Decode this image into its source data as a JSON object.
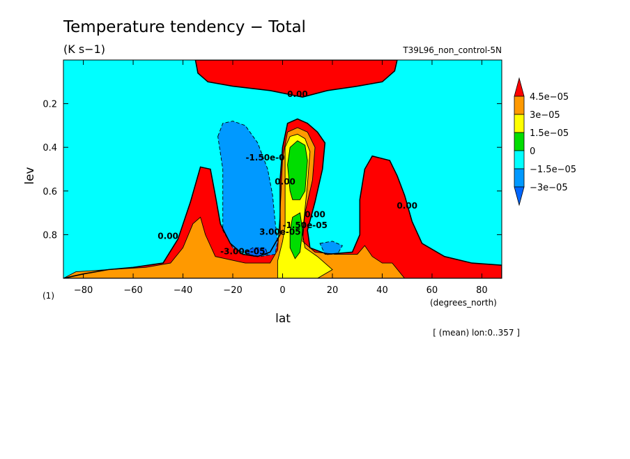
{
  "chart_data": {
    "type": "heatmap",
    "title": "Temperature tendency − Total",
    "units": "(K s−1)",
    "run_label": "T39L96_non_control-5N",
    "xlabel": "lat",
    "ylabel": "lev",
    "x_units": "(degrees_north)",
    "y_units": "(1)",
    "note": "[ (mean) lon:0..357 ]",
    "xlim": [
      -88,
      88
    ],
    "ylim": [
      0.0,
      1.0
    ],
    "y_inverted": true,
    "x_ticks": [
      {
        "value": -80,
        "label": "−80"
      },
      {
        "value": -60,
        "label": "−60"
      },
      {
        "value": -40,
        "label": "−40"
      },
      {
        "value": -20,
        "label": "−20"
      },
      {
        "value": 0,
        "label": "0"
      },
      {
        "value": 20,
        "label": "20"
      },
      {
        "value": 40,
        "label": "40"
      },
      {
        "value": 60,
        "label": "60"
      },
      {
        "value": 80,
        "label": "80"
      }
    ],
    "y_ticks": [
      {
        "value": 0.2,
        "label": "0.2"
      },
      {
        "value": 0.4,
        "label": "0.4"
      },
      {
        "value": 0.6,
        "label": "0.6"
      },
      {
        "value": 0.8,
        "label": "0.8"
      }
    ],
    "colorbar": {
      "labels": [
        "4.5e−05",
        "3e−05",
        "1.5e−05",
        "0",
        "−1.5e−05",
        "−3e−05"
      ],
      "levels": [
        4.5e-05,
        3e-05,
        1.5e-05,
        0,
        -1.5e-05,
        -3e-05
      ],
      "colors": [
        "#ff0000",
        "#ff9900",
        "#ffff00",
        "#00dd00",
        "#00ffff",
        "#0099ff",
        "#0066ff"
      ]
    },
    "contour_labels": [
      {
        "text": "0.00",
        "lat": 6,
        "lev": 0.17
      },
      {
        "text": "0.00",
        "lat": -46,
        "lev": 0.82
      },
      {
        "text": "0.00",
        "lat": 50,
        "lev": 0.68
      },
      {
        "text": "-1.50e-0",
        "lat": -7,
        "lev": 0.46
      },
      {
        "text": "-3.00e-05",
        "lat": -16,
        "lev": 0.89
      },
      {
        "text": "0.00",
        "lat": 13,
        "lev": 0.72
      },
      {
        "text": "-1.50e-05",
        "lat": 9,
        "lev": 0.77
      },
      {
        "text": "3.00e-05",
        "lat": -1,
        "lev": 0.8
      },
      {
        "text": "0.00",
        "lat": 1,
        "lev": 0.57
      }
    ],
    "fields": [
      {
        "level": 0,
        "polygons": [
          [
            [
              -88,
              1.0
            ],
            [
              -80,
              0.98
            ],
            [
              -70,
              0.96
            ],
            [
              -60,
              0.95
            ],
            [
              -48,
              0.93
            ],
            [
              -42,
              0.82
            ],
            [
              -37,
              0.65
            ],
            [
              -33,
              0.49
            ],
            [
              -29,
              0.5
            ],
            [
              -27,
              0.62
            ],
            [
              -25,
              0.75
            ],
            [
              -21,
              0.84
            ],
            [
              -16,
              0.89
            ],
            [
              -10,
              0.9
            ],
            [
              -5,
              0.88
            ],
            [
              -1,
              0.8
            ],
            [
              -1,
              0.55
            ],
            [
              0,
              0.4
            ],
            [
              2,
              0.29
            ],
            [
              6,
              0.27
            ],
            [
              10,
              0.29
            ],
            [
              14,
              0.33
            ],
            [
              17,
              0.38
            ],
            [
              16,
              0.5
            ],
            [
              13,
              0.65
            ],
            [
              10,
              0.78
            ],
            [
              11,
              0.86
            ],
            [
              18,
              0.89
            ],
            [
              28,
              0.88
            ],
            [
              31,
              0.8
            ],
            [
              31,
              0.64
            ],
            [
              33,
              0.5
            ],
            [
              36,
              0.44
            ],
            [
              43,
              0.46
            ],
            [
              46,
              0.53
            ],
            [
              49,
              0.62
            ],
            [
              52,
              0.74
            ],
            [
              56,
              0.84
            ],
            [
              65,
              0.9
            ],
            [
              76,
              0.93
            ],
            [
              88,
              0.94
            ],
            [
              88,
              1.0
            ]
          ],
          [
            [
              -35,
              0.0
            ],
            [
              -34,
              0.06
            ],
            [
              -30,
              0.1
            ],
            [
              -20,
              0.12
            ],
            [
              -5,
              0.14
            ],
            [
              8,
              0.17
            ],
            [
              18,
              0.14
            ],
            [
              30,
              0.12
            ],
            [
              40,
              0.1
            ],
            [
              45,
              0.05
            ],
            [
              46,
              0.0
            ]
          ]
        ]
      },
      {
        "level": 1,
        "polygons": [
          [
            [
              -88,
              1.0
            ],
            [
              -83,
              0.97
            ],
            [
              -70,
              0.96
            ],
            [
              -55,
              0.95
            ],
            [
              -45,
              0.93
            ],
            [
              -40,
              0.86
            ],
            [
              -36,
              0.75
            ],
            [
              -33,
              0.72
            ],
            [
              -31,
              0.8
            ],
            [
              -27,
              0.9
            ],
            [
              -15,
              0.93
            ],
            [
              -5,
              0.93
            ],
            [
              -2,
              0.87
            ],
            [
              -1,
              0.7
            ],
            [
              0,
              0.45
            ],
            [
              2,
              0.33
            ],
            [
              6,
              0.31
            ],
            [
              10,
              0.33
            ],
            [
              13,
              0.4
            ],
            [
              12,
              0.55
            ],
            [
              9,
              0.7
            ],
            [
              8,
              0.83
            ],
            [
              13,
              0.88
            ],
            [
              22,
              0.89
            ],
            [
              30,
              0.89
            ],
            [
              33,
              0.85
            ],
            [
              36,
              0.9
            ],
            [
              40,
              0.93
            ],
            [
              44,
              0.93
            ],
            [
              49,
              1.0
            ]
          ]
        ]
      },
      {
        "level": 2,
        "polygons": [
          [
            [
              -2,
              1.0
            ],
            [
              -2,
              0.92
            ],
            [
              0,
              0.83
            ],
            [
              1,
              0.76
            ],
            [
              1,
              0.55
            ],
            [
              1,
              0.4
            ],
            [
              3,
              0.35
            ],
            [
              6,
              0.34
            ],
            [
              9,
              0.36
            ],
            [
              11,
              0.42
            ],
            [
              10,
              0.57
            ],
            [
              9,
              0.68
            ],
            [
              8,
              0.8
            ],
            [
              9,
              0.86
            ],
            [
              14,
              0.9
            ],
            [
              20,
              0.96
            ],
            [
              14,
              1.0
            ]
          ]
        ]
      },
      {
        "level": 3,
        "polygons": [
          [
            [
              3,
              0.6
            ],
            [
              2,
              0.48
            ],
            [
              3,
              0.4
            ],
            [
              6,
              0.37
            ],
            [
              9,
              0.39
            ],
            [
              10,
              0.46
            ],
            [
              9,
              0.6
            ],
            [
              7,
              0.64
            ],
            [
              4,
              0.64
            ]
          ],
          [
            [
              4,
              0.72
            ],
            [
              7,
              0.7
            ],
            [
              8,
              0.78
            ],
            [
              7,
              0.88
            ],
            [
              5,
              0.91
            ],
            [
              3,
              0.86
            ],
            [
              3,
              0.78
            ]
          ]
        ]
      },
      {
        "level": 5,
        "polygons": [
          [
            [
              -26,
              0.35
            ],
            [
              -24,
              0.29
            ],
            [
              -20,
              0.28
            ],
            [
              -15,
              0.3
            ],
            [
              -10,
              0.38
            ],
            [
              -6,
              0.5
            ],
            [
              -4,
              0.62
            ],
            [
              -3,
              0.74
            ],
            [
              -2,
              0.83
            ],
            [
              -3,
              0.89
            ],
            [
              -9,
              0.9
            ],
            [
              -14,
              0.89
            ],
            [
              -20,
              0.86
            ],
            [
              -24,
              0.78
            ],
            [
              -24,
              0.65
            ],
            [
              -24,
              0.5
            ]
          ],
          [
            [
              15,
              0.84
            ],
            [
              20,
              0.83
            ],
            [
              24,
              0.85
            ],
            [
              22,
              0.89
            ],
            [
              17,
              0.89
            ]
          ]
        ]
      },
      {
        "level": 6,
        "polygons": [
          [
            [
              -15,
              0.88
            ],
            [
              -12,
              0.86
            ],
            [
              -7,
              0.86
            ],
            [
              -6,
              0.89
            ],
            [
              -12,
              0.9
            ]
          ]
        ]
      }
    ]
  }
}
